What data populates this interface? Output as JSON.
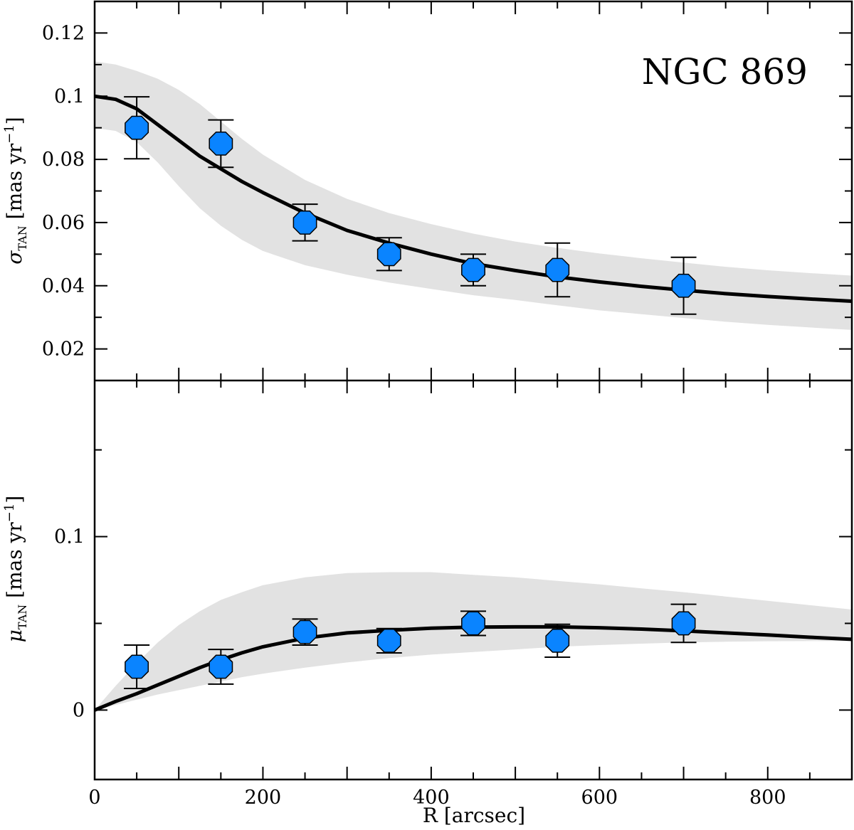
{
  "chart_data": [
    {
      "type": "scatter",
      "panel": "top",
      "annotation": "NGC 869",
      "ylabel": {
        "symbol": "σ",
        "subscript": "TAN",
        "unit": "[mas yr",
        "exp": "−1",
        "close": "]"
      },
      "xlim": [
        0,
        900
      ],
      "ylim": [
        0.01,
        0.13
      ],
      "yticks": [
        0.02,
        0.04,
        0.06,
        0.08,
        0.1,
        0.12
      ],
      "ytick_labels": [
        "0.02",
        "0.04",
        "0.06",
        "0.08",
        "0.1",
        "0.12"
      ],
      "series": [
        {
          "kind": "points",
          "color": "#0a84ff",
          "x": [
            50,
            150,
            250,
            350,
            450,
            550,
            700
          ],
          "y": [
            0.09,
            0.085,
            0.06,
            0.05,
            0.045,
            0.045,
            0.04
          ],
          "err": [
            0.0098,
            0.0075,
            0.0058,
            0.0052,
            0.005,
            0.0085,
            0.009
          ]
        },
        {
          "kind": "model",
          "color": "#000000",
          "x": [
            0,
            25,
            50,
            75,
            100,
            125,
            150,
            175,
            200,
            250,
            300,
            350,
            400,
            450,
            500,
            550,
            600,
            650,
            700,
            750,
            800,
            850,
            900
          ],
          "y": [
            0.1,
            0.099,
            0.096,
            0.091,
            0.086,
            0.081,
            0.077,
            0.073,
            0.0695,
            0.063,
            0.0575,
            0.0535,
            0.05,
            0.047,
            0.0448,
            0.0428,
            0.0412,
            0.0398,
            0.0386,
            0.0375,
            0.0366,
            0.0358,
            0.0351
          ]
        },
        {
          "kind": "band",
          "color": "#e2e2e2",
          "x": [
            0,
            25,
            50,
            75,
            100,
            125,
            150,
            175,
            200,
            250,
            300,
            350,
            400,
            450,
            500,
            550,
            600,
            650,
            700,
            750,
            800,
            850,
            900
          ],
          "lower": [
            0.09,
            0.089,
            0.0855,
            0.079,
            0.0715,
            0.0645,
            0.059,
            0.0545,
            0.051,
            0.0465,
            0.0435,
            0.041,
            0.039,
            0.037,
            0.0355,
            0.0338,
            0.0322,
            0.031,
            0.0298,
            0.0286,
            0.0276,
            0.0268,
            0.026
          ],
          "upper": [
            0.111,
            0.11,
            0.108,
            0.1055,
            0.102,
            0.0975,
            0.092,
            0.0865,
            0.0815,
            0.0735,
            0.0675,
            0.063,
            0.0595,
            0.0565,
            0.054,
            0.052,
            0.0502,
            0.0487,
            0.0473,
            0.046,
            0.0449,
            0.044,
            0.0432
          ]
        }
      ]
    },
    {
      "type": "scatter",
      "panel": "bottom",
      "xlabel": "R [arcsec]",
      "ylabel": {
        "symbol": "μ",
        "subscript": "TAN",
        "unit": "[mas yr",
        "exp": "−1",
        "close": "]"
      },
      "xlim": [
        0,
        900
      ],
      "ylim": [
        -0.04,
        0.19
      ],
      "xticks": [
        0,
        200,
        400,
        600,
        800
      ],
      "xtick_labels": [
        "0",
        "200",
        "400",
        "600",
        "800"
      ],
      "yticks": [
        0,
        0.1
      ],
      "ytick_labels": [
        "0",
        "0.1"
      ],
      "series": [
        {
          "kind": "points",
          "color": "#0a84ff",
          "x": [
            50,
            150,
            250,
            350,
            450,
            550,
            700
          ],
          "y": [
            0.025,
            0.025,
            0.045,
            0.04,
            0.05,
            0.04,
            0.05
          ],
          "err": [
            0.0125,
            0.01,
            0.0075,
            0.007,
            0.007,
            0.0095,
            0.011
          ]
        },
        {
          "kind": "model",
          "color": "#000000",
          "x": [
            0,
            25,
            50,
            75,
            100,
            125,
            150,
            175,
            200,
            250,
            300,
            350,
            400,
            450,
            500,
            550,
            600,
            650,
            700,
            750,
            800,
            850,
            900
          ],
          "y": [
            0.0,
            0.005,
            0.0095,
            0.0145,
            0.0195,
            0.0245,
            0.029,
            0.033,
            0.0365,
            0.0415,
            0.0445,
            0.046,
            0.0472,
            0.0478,
            0.048,
            0.048,
            0.0475,
            0.0467,
            0.0457,
            0.0445,
            0.0433,
            0.042,
            0.0408
          ]
        },
        {
          "kind": "band",
          "color": "#e2e2e2",
          "x": [
            0,
            25,
            50,
            75,
            100,
            125,
            150,
            175,
            200,
            250,
            300,
            350,
            400,
            450,
            500,
            550,
            600,
            650,
            700,
            750,
            800,
            850,
            900
          ],
          "lower": [
            0.0,
            0.003,
            0.006,
            0.009,
            0.0115,
            0.014,
            0.0165,
            0.019,
            0.021,
            0.0245,
            0.0275,
            0.03,
            0.032,
            0.0335,
            0.035,
            0.0365,
            0.0375,
            0.0383,
            0.039,
            0.0394,
            0.0397,
            0.0398,
            0.0398
          ],
          "upper": [
            0.0,
            0.014,
            0.027,
            0.039,
            0.049,
            0.057,
            0.0635,
            0.068,
            0.072,
            0.0765,
            0.079,
            0.0795,
            0.0795,
            0.078,
            0.0765,
            0.0745,
            0.0725,
            0.0702,
            0.068,
            0.0655,
            0.063,
            0.0605,
            0.058
          ]
        }
      ]
    }
  ]
}
